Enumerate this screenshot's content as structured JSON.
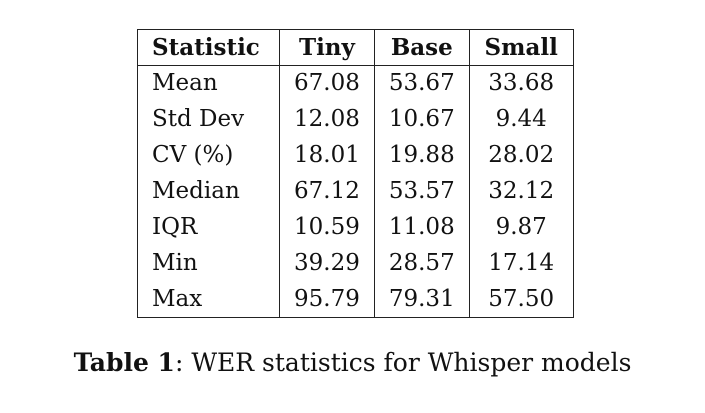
{
  "table": {
    "headers": [
      "Statistic",
      "Tiny",
      "Base",
      "Small"
    ],
    "rows": [
      [
        "Mean",
        "67.08",
        "53.67",
        "33.68"
      ],
      [
        "Std Dev",
        "12.08",
        "10.67",
        "9.44"
      ],
      [
        "CV (%)",
        "18.01",
        "19.88",
        "28.02"
      ],
      [
        "Median",
        "67.12",
        "53.57",
        "32.12"
      ],
      [
        "IQR",
        "10.59",
        "11.08",
        "9.87"
      ],
      [
        "Min",
        "39.29",
        "28.57",
        "17.14"
      ],
      [
        "Max",
        "95.79",
        "79.31",
        "57.50"
      ]
    ]
  },
  "caption": {
    "label": "Table 1",
    "text": ": WER statistics for Whisper models"
  }
}
